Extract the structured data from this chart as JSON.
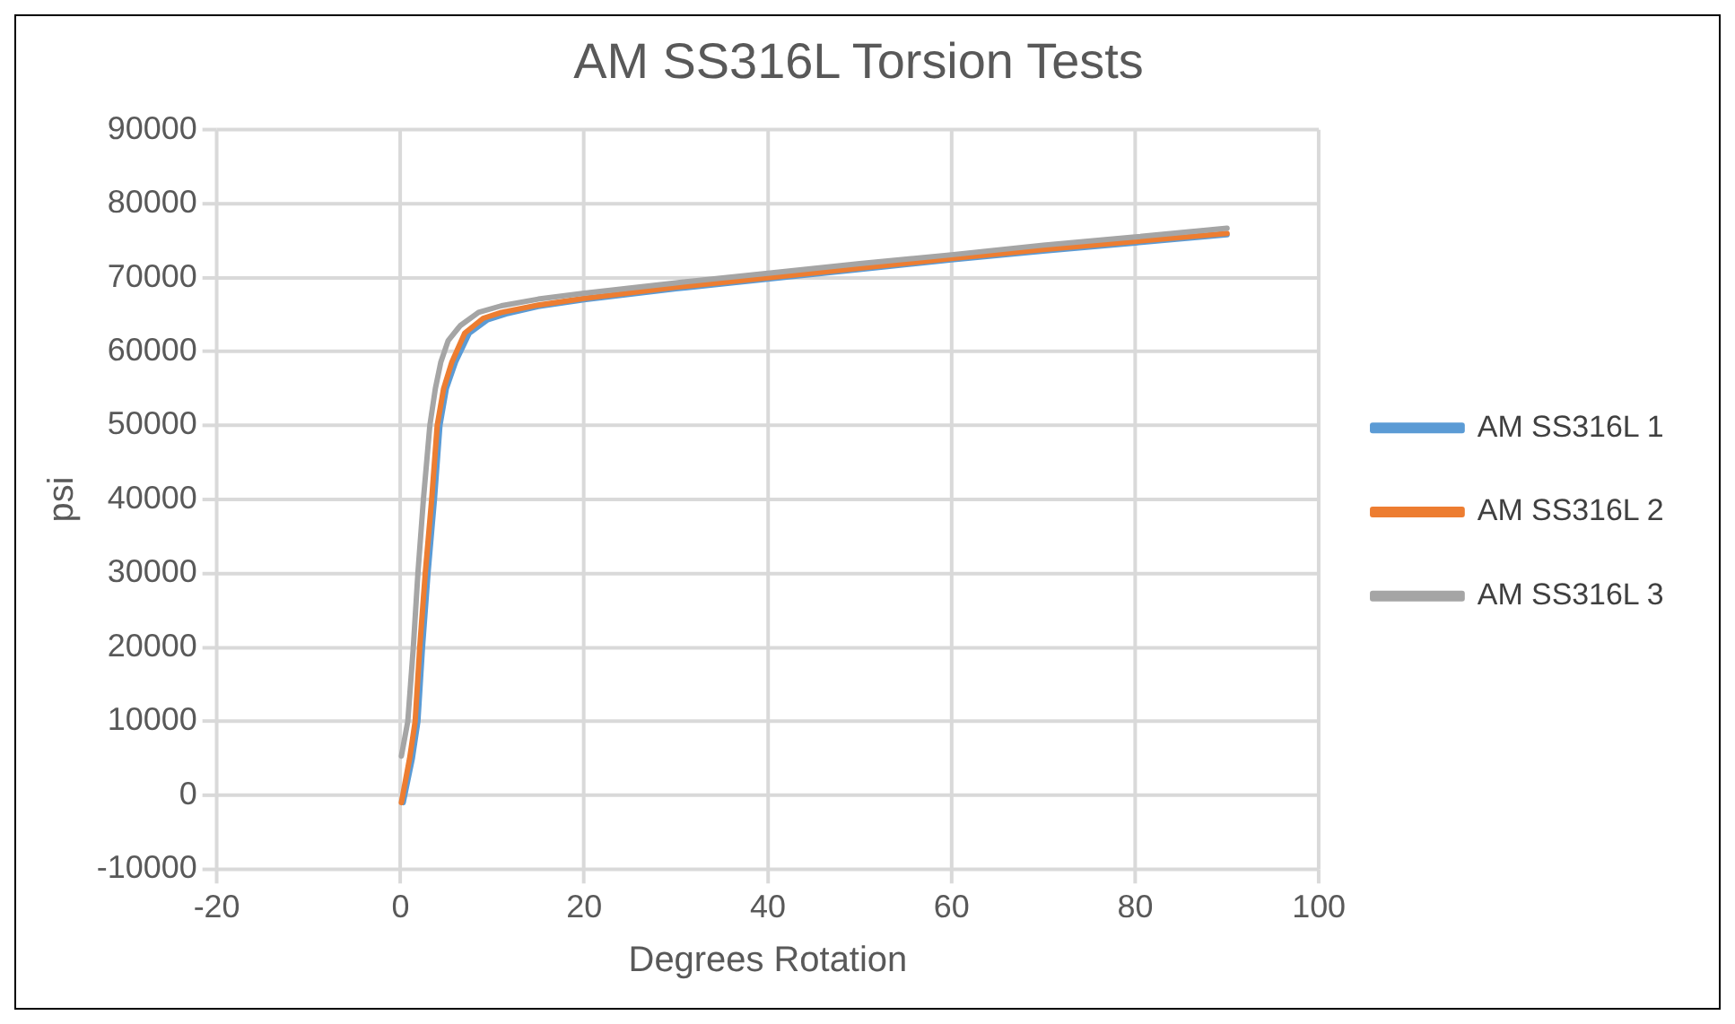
{
  "chart_data": {
    "type": "line",
    "title": "AM SS316L Torsion Tests",
    "xlabel": "Degrees Rotation",
    "ylabel": "psi",
    "xlim": [
      -20,
      100
    ],
    "xticks": [
      -20,
      0,
      20,
      40,
      60,
      80,
      100
    ],
    "ylim": [
      -10000,
      90000
    ],
    "yticks": [
      -10000,
      0,
      10000,
      20000,
      30000,
      40000,
      50000,
      60000,
      70000,
      80000,
      90000
    ],
    "grid": true,
    "legend": "right",
    "marker": "none",
    "line_style": "solid",
    "series": [
      {
        "name": "AM SS316L 1",
        "color": "#5b9bd5",
        "x": [
          0.3,
          1.3,
          1.9,
          2.4,
          3.0,
          3.7,
          4.3,
          5.0,
          6.0,
          7.5,
          9.5,
          11.5,
          15,
          20,
          30,
          40,
          50,
          60,
          70,
          80,
          90
        ],
        "values": [
          -1000,
          5000,
          10000,
          20000,
          30000,
          40000,
          50000,
          55000,
          58600,
          62500,
          64300,
          65100,
          66100,
          67000,
          68500,
          69800,
          71100,
          72400,
          73600,
          74700,
          75800
        ]
      },
      {
        "name": "AM SS316L 2",
        "color": "#ed7d31",
        "x": [
          0.1,
          1,
          1.6,
          2.1,
          2.7,
          3.4,
          4.0,
          4.7,
          5.6,
          7,
          9,
          11,
          15,
          20,
          30,
          40,
          50,
          60,
          70,
          80,
          90
        ],
        "values": [
          -1000,
          5000,
          10000,
          20000,
          30000,
          40000,
          50000,
          55000,
          58600,
          62500,
          64500,
          65300,
          66300,
          67200,
          68700,
          70000,
          71300,
          72600,
          73800,
          74900,
          76000
        ]
      },
      {
        "name": "AM SS316L 3",
        "color": "#a5a5a5",
        "x": [
          0.1,
          0.8,
          1.4,
          1.9,
          2.5,
          3.2,
          3.8,
          4.4,
          5.2,
          6.5,
          8.5,
          11,
          15,
          20,
          30,
          40,
          50,
          60,
          70,
          80,
          90
        ],
        "values": [
          5300,
          10000,
          20000,
          30000,
          40000,
          50000,
          55000,
          58600,
          61500,
          63500,
          65300,
          66200,
          67100,
          67900,
          69300,
          70600,
          71900,
          73100,
          74400,
          75500,
          76700
        ]
      }
    ]
  }
}
